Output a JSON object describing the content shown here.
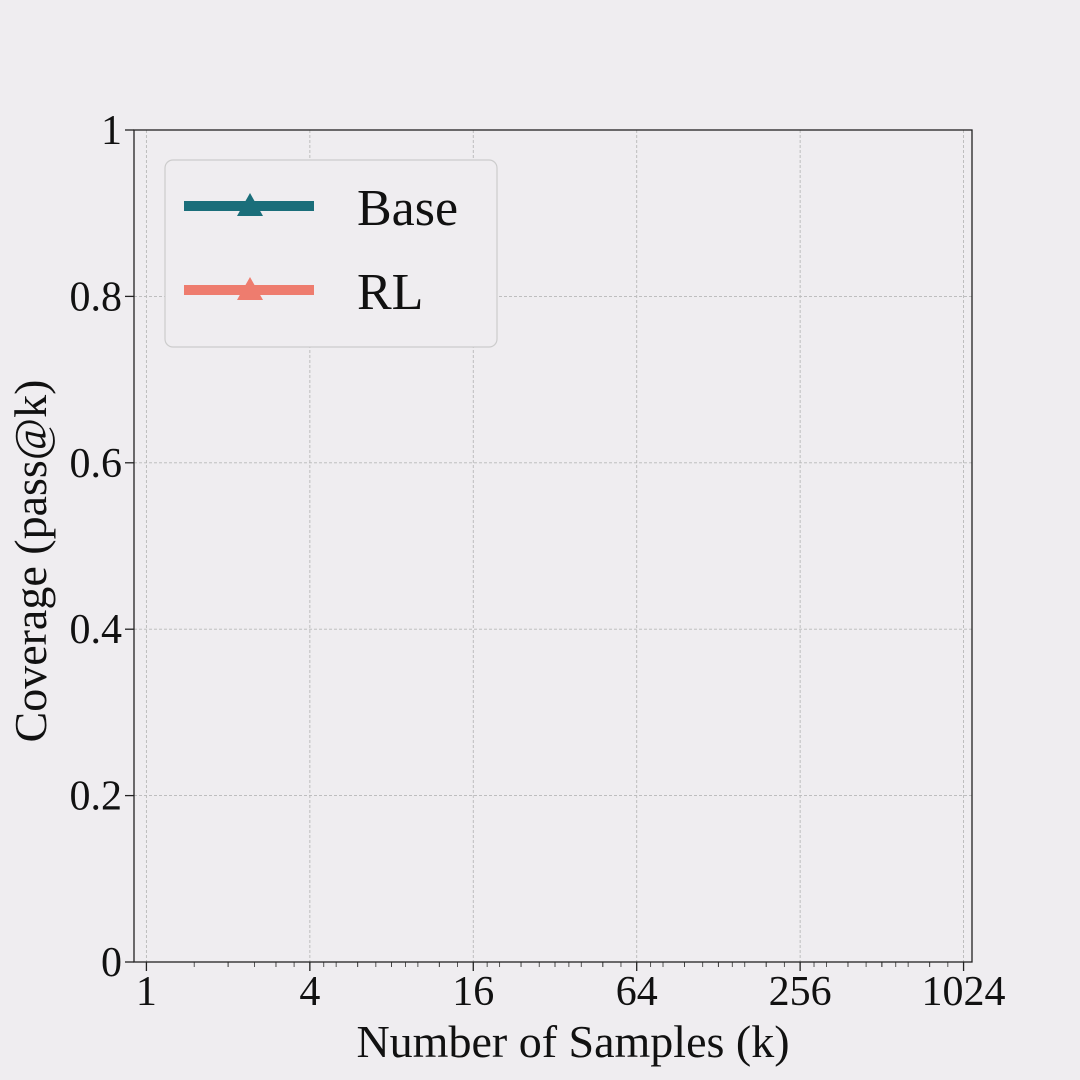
{
  "chart_data": {
    "type": "line",
    "title": "",
    "xlabel": "Number of Samples (k)",
    "ylabel": "Coverage (pass@k)",
    "x_scale": "log2",
    "x_ticks": [
      1,
      4,
      16,
      64,
      256,
      1024
    ],
    "x_tick_labels": [
      "1",
      "4",
      "16",
      "64",
      "256",
      "1024"
    ],
    "y_ticks": [
      0,
      0.2,
      0.4,
      0.6,
      0.8,
      1
    ],
    "y_tick_labels": [
      "0",
      "0.2",
      "0.4",
      "0.6",
      "0.8",
      "1"
    ],
    "xlim": [
      0.9,
      1100
    ],
    "ylim": [
      0,
      1
    ],
    "grid": true,
    "legend_position": "top-left",
    "series": [
      {
        "name": "Base",
        "color": "#1a6e7a",
        "marker": "triangle-up",
        "x": [],
        "y": []
      },
      {
        "name": "RL",
        "color": "#ee7c6e",
        "marker": "triangle-up",
        "x": [],
        "y": []
      }
    ]
  }
}
